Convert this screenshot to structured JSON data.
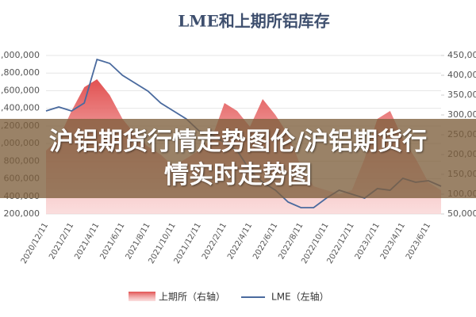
{
  "chart_data": {
    "type": "area-line",
    "title": "LME和上期所铝库存",
    "categories": [
      "2020/12/11",
      null,
      "2021/2/11",
      null,
      "2021/4/11",
      null,
      "2021/6/11",
      null,
      "2021/8/11",
      null,
      "2021/10/11",
      null,
      "2021/12/11",
      null,
      "2022/2/11",
      null,
      "2022/4/11",
      null,
      "2022/6/11",
      null,
      "2022/8/11",
      null,
      "2022/10/11",
      null,
      "2022/12/11",
      null,
      "2023/2/11",
      null,
      "2023/4/11",
      null,
      "2023/6/11",
      null
    ],
    "series": [
      {
        "name": "上期所（右轴）",
        "color": "#e06060",
        "axis": "y2",
        "values": [
          210000,
          240000,
          310000,
          370000,
          390000,
          350000,
          290000,
          250000,
          220000,
          200000,
          170000,
          190000,
          210000,
          240000,
          330000,
          310000,
          270000,
          340000,
          300000,
          250000,
          170000,
          120000,
          110000,
          100000,
          110000,
          190000,
          290000,
          310000,
          240000,
          190000,
          130000,
          110000
        ]
      },
      {
        "name": "LME（左轴）",
        "color": "#4a6a9e",
        "values": [
          1370000,
          1415000,
          1370000,
          1460000,
          1955000,
          1910000,
          1775000,
          1685000,
          1595000,
          1460000,
          1370000,
          1280000,
          1145000,
          1100000,
          1010000,
          920000,
          695000,
          560000,
          470000,
          335000,
          272000,
          272000,
          380000,
          470000,
          425000,
          380000,
          488000,
          470000,
          605000,
          560000,
          578000,
          515000
        ]
      }
    ],
    "ylim": [
      200000,
      2000000
    ],
    "yticks": [
      {
        "value": 200000,
        "label": "200,000"
      },
      {
        "value": 400000,
        "label": "400,000"
      },
      {
        "value": 600000,
        "label": "600,000"
      },
      {
        "value": 800000,
        "label": "800,000"
      },
      {
        "value": 1000000,
        "label": "1,000,000"
      },
      {
        "value": 1200000,
        "label": "1,200,000"
      },
      {
        "value": 1400000,
        "label": "1,400,000"
      },
      {
        "value": 1600000,
        "label": "1,600,000"
      },
      {
        "value": 1800000,
        "label": "1,800,000"
      },
      {
        "value": 2000000,
        "label": "2,000,000"
      }
    ],
    "y2lim": [
      50000,
      450000
    ],
    "y2ticks": [
      {
        "value": 50000,
        "label": "50,000"
      },
      {
        "value": 100000,
        "label": "100,000"
      },
      {
        "value": 150000,
        "label": "150,000"
      },
      {
        "value": 200000,
        "label": "200,000"
      },
      {
        "value": 250000,
        "label": "250,000"
      },
      {
        "value": 300000,
        "label": "300,000"
      },
      {
        "value": 350000,
        "label": "350,000"
      },
      {
        "value": 400000,
        "label": "400,000"
      },
      {
        "value": 450000,
        "label": "450,000"
      }
    ],
    "grid": true
  },
  "overlay": {
    "text": "沪铝期货行情走势图伦/沪铝期货行情实时走势图"
  }
}
